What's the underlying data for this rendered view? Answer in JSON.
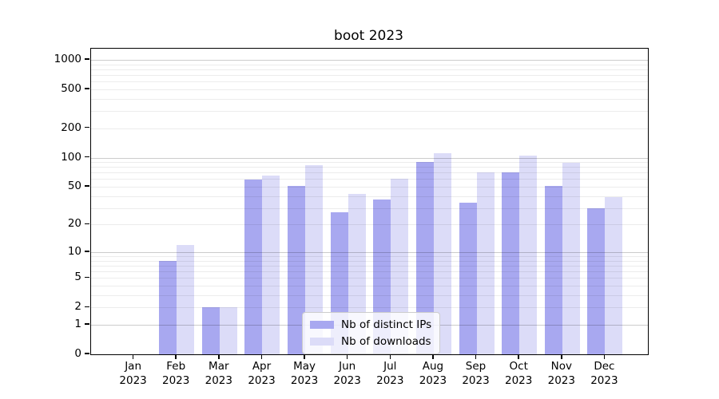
{
  "title": "boot 2023",
  "colors": {
    "distinct_ips": "#a8a8f0",
    "downloads": "#dcdcf8",
    "axis": "#000000"
  },
  "legend": {
    "items": [
      {
        "label": "Nb of distinct IPs",
        "color": "#a8a8f0"
      },
      {
        "label": "Nb of downloads",
        "color": "#dcdcf8"
      }
    ]
  },
  "chart_data": {
    "type": "bar",
    "title": "boot 2023",
    "categories": [
      "Jan 2023",
      "Feb 2023",
      "Mar 2023",
      "Apr 2023",
      "May 2023",
      "Jun 2023",
      "Jul 2023",
      "Aug 2023",
      "Sep 2023",
      "Oct 2023",
      "Nov 2023",
      "Dec 2023"
    ],
    "series": [
      {
        "name": "Nb of distinct IPs",
        "color": "#a8a8f0",
        "values": [
          0,
          8,
          2,
          59,
          51,
          27,
          37,
          90,
          34,
          70,
          51,
          30
        ]
      },
      {
        "name": "Nb of downloads",
        "color": "#dcdcf8",
        "values": [
          0,
          12,
          2,
          65,
          84,
          42,
          61,
          112,
          70,
          104,
          88,
          39
        ]
      }
    ],
    "xlabel": "",
    "ylabel": "",
    "yscale": "log1p",
    "yticks": [
      0,
      1,
      2,
      5,
      10,
      20,
      50,
      100,
      200,
      500,
      1000
    ],
    "major_gridlines": [
      1,
      10,
      100,
      1000
    ],
    "ylim": [
      0,
      1200
    ],
    "grid": true,
    "legend_position": "lower center"
  }
}
